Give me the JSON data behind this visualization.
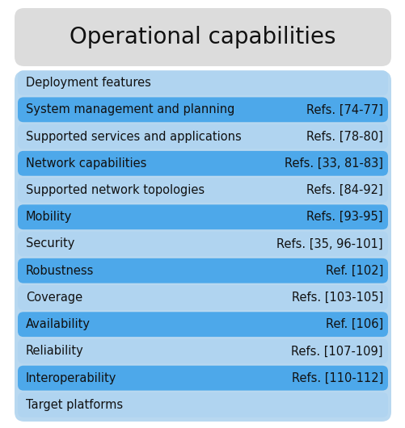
{
  "title": "Operational capabilities",
  "rows": [
    {
      "label": "Deployment features",
      "ref": "",
      "dark": false
    },
    {
      "label": "System management and planning",
      "ref": "Refs. [74-77]",
      "dark": true
    },
    {
      "label": "Supported services and applications",
      "ref": "Refs. [78-80]",
      "dark": false
    },
    {
      "label": "Network capabilities",
      "ref": "Refs. [33, 81-83]",
      "dark": true
    },
    {
      "label": "Supported network topologies",
      "ref": "Refs. [84-92]",
      "dark": false
    },
    {
      "label": "Mobility",
      "ref": "Refs. [93-95]",
      "dark": true
    },
    {
      "label": "Security",
      "ref": "Refs. [35, 96-101]",
      "dark": false
    },
    {
      "label": "Robustness",
      "ref": "Ref. [102]",
      "dark": true
    },
    {
      "label": "Coverage",
      "ref": "Refs. [103-105]",
      "dark": false
    },
    {
      "label": "Availability",
      "ref": "Ref. [106]",
      "dark": true
    },
    {
      "label": "Reliability",
      "ref": "Refs. [107-109]",
      "dark": false
    },
    {
      "label": "Interoperability",
      "ref": "Refs. [110-112]",
      "dark": true
    },
    {
      "label": "Target platforms",
      "ref": "",
      "dark": false
    }
  ],
  "color_light": "#b0d4f0",
  "color_dark": "#4da8ea",
  "color_title_bg": "#dcdcdc",
  "outer_bg": "#b8d8f0",
  "fig_bg": "#ffffff",
  "text_color": "#111111",
  "font_size": 10.5,
  "title_font_size": 20,
  "fig_w": 5.02,
  "fig_h": 5.3,
  "dpi": 100
}
